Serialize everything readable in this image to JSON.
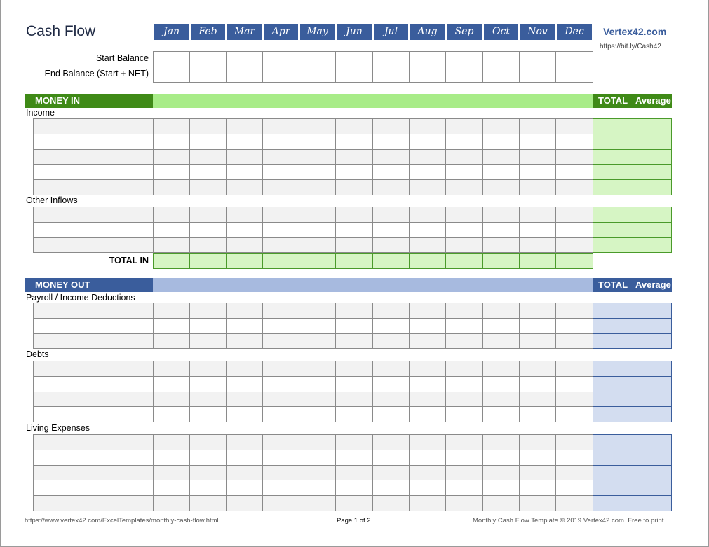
{
  "title": "Cash Flow",
  "months": [
    "Jan",
    "Feb",
    "Mar",
    "Apr",
    "May",
    "Jun",
    "Jul",
    "Aug",
    "Sep",
    "Oct",
    "Nov",
    "Dec"
  ],
  "brand": {
    "name": "Vertex42.com",
    "short_url": "https://bit.ly/Cash42"
  },
  "balance": {
    "start_label": "Start Balance",
    "end_label": "End Balance (Start + NET)"
  },
  "money_in": {
    "header": "MONEY IN",
    "total_label": "TOTAL",
    "average_label": "Average",
    "sections": [
      {
        "label": "Income",
        "rows": 5
      },
      {
        "label": "Other Inflows",
        "rows": 3
      }
    ],
    "total_in_label": "TOTAL IN"
  },
  "money_out": {
    "header": "MONEY OUT",
    "total_label": "TOTAL",
    "average_label": "Average",
    "sections": [
      {
        "label": "Payroll / Income Deductions",
        "rows": 3
      },
      {
        "label": "Debts",
        "rows": 4
      },
      {
        "label": "Living Expenses",
        "rows": 5
      }
    ]
  },
  "footer": {
    "url": "https://www.vertex42.com/ExcelTemplates/monthly-cash-flow.html",
    "page": "Page 1 of 2",
    "copyright": "Monthly Cash Flow Template © 2019 Vertex42.com. Free to print."
  },
  "colors": {
    "green_dark": "#3f8a17",
    "green_light": "#a8ec88",
    "green_cell": "#d6f5c4",
    "blue_dark": "#3a5d9c",
    "blue_light": "#a7badf",
    "blue_cell": "#d3ddf0"
  }
}
